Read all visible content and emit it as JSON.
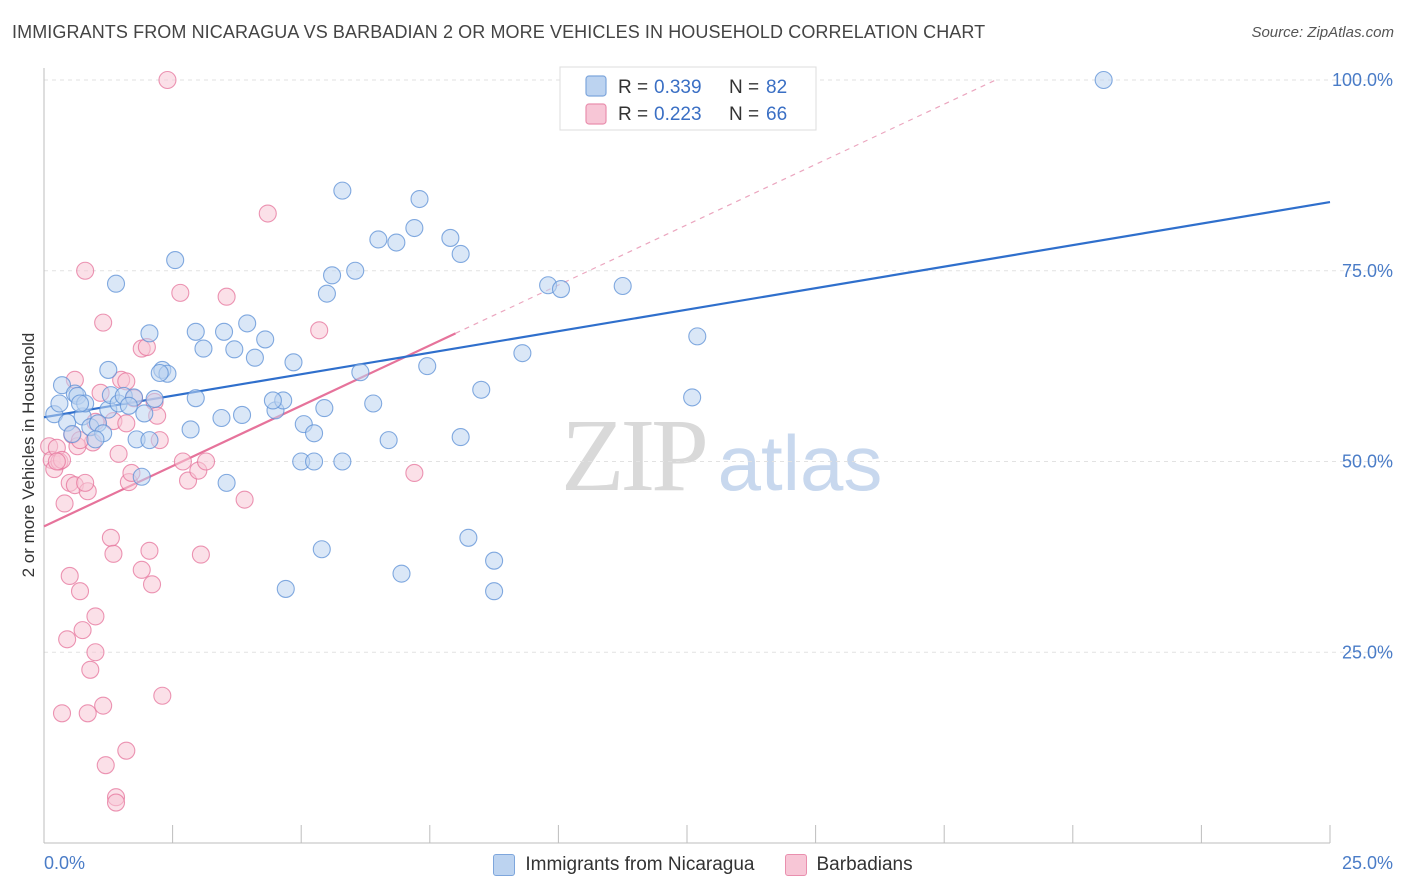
{
  "header": {
    "title": "IMMIGRANTS FROM NICARAGUA VS BARBADIAN 2 OR MORE VEHICLES IN HOUSEHOLD CORRELATION CHART",
    "source": "Source: ZipAtlas.com"
  },
  "watermark": {
    "zip": "ZIP",
    "atlas": "atlas"
  },
  "legend": {
    "r_label": "R =",
    "n_label": "N =",
    "series": [
      {
        "r": "0.339",
        "n": "82"
      },
      {
        "r": "0.223",
        "n": "66"
      }
    ]
  },
  "bottom_legend": {
    "items": [
      {
        "label": "Immigrants from Nicaragua",
        "color": "#8fb4e3"
      },
      {
        "label": "Barbadians",
        "color": "#f2a5bf"
      }
    ]
  },
  "chart_data": {
    "type": "scatter",
    "title": "IMMIGRANTS FROM NICARAGUA VS BARBADIAN 2 OR MORE VEHICLES IN HOUSEHOLD CORRELATION CHART",
    "xlabel": "",
    "ylabel": "2 or more Vehicles in Household",
    "xlim": [
      0,
      25
    ],
    "ylim": [
      0,
      100
    ],
    "x_tick_labels": [
      "0.0%",
      "25.0%"
    ],
    "y_ticks": [
      25,
      50,
      75,
      100
    ],
    "y_tick_labels": [
      "25.0%",
      "50.0%",
      "75.0%",
      "100.0%"
    ],
    "grid": true,
    "legend_position": "top-center",
    "series": [
      {
        "name": "Immigrants from Nicaragua",
        "color": "#5b8fd6",
        "fill": "#bcd3f0",
        "r": 0.339,
        "n": 82,
        "trend": {
          "x0": 0,
          "y0": 55.8,
          "x1": 25,
          "y1": 84.0,
          "solid_to": 25
        },
        "points": [
          [
            0.2,
            56.2
          ],
          [
            0.3,
            57.6
          ],
          [
            0.35,
            60
          ],
          [
            0.45,
            55.1
          ],
          [
            0.6,
            58.9
          ],
          [
            0.65,
            58.6
          ],
          [
            0.75,
            55.9
          ],
          [
            0.8,
            57.6
          ],
          [
            0.9,
            54.5
          ],
          [
            1.05,
            55
          ],
          [
            1.15,
            53.7
          ],
          [
            1.25,
            56.8
          ],
          [
            1.3,
            58.7
          ],
          [
            1.25,
            62
          ],
          [
            1.45,
            57.6
          ],
          [
            1.55,
            58.6
          ],
          [
            1.75,
            58.4
          ],
          [
            1.8,
            52.9
          ],
          [
            1.9,
            48
          ],
          [
            1.95,
            56.3
          ],
          [
            2.05,
            52.8
          ],
          [
            2.3,
            62
          ],
          [
            2.4,
            61.5
          ],
          [
            2.55,
            76.4
          ],
          [
            2.85,
            54.2
          ],
          [
            2.95,
            58.3
          ],
          [
            3.1,
            64.8
          ],
          [
            3.45,
            55.7
          ],
          [
            3.7,
            64.7
          ],
          [
            3.85,
            56.1
          ],
          [
            3.95,
            68.1
          ],
          [
            4.1,
            63.6
          ],
          [
            4.3,
            66
          ],
          [
            4.5,
            56.7
          ],
          [
            4.65,
            58
          ],
          [
            4.85,
            63
          ],
          [
            5.0,
            50
          ],
          [
            5.05,
            54.9
          ],
          [
            5.25,
            53.7
          ],
          [
            5.45,
            57
          ],
          [
            5.5,
            72
          ],
          [
            5.6,
            74.4
          ],
          [
            5.8,
            85.5
          ],
          [
            6.05,
            75
          ],
          [
            6.15,
            61.7
          ],
          [
            6.4,
            57.6
          ],
          [
            6.5,
            79.1
          ],
          [
            6.7,
            52.8
          ],
          [
            6.85,
            78.7
          ],
          [
            7.2,
            80.6
          ],
          [
            7.3,
            84.4
          ],
          [
            7.45,
            62.5
          ],
          [
            7.9,
            79.3
          ],
          [
            8.1,
            77.2
          ],
          [
            8.1,
            53.2
          ],
          [
            8.5,
            59.4
          ],
          [
            9.3,
            64.2
          ],
          [
            9.8,
            73.1
          ],
          [
            10.05,
            72.6
          ],
          [
            11.25,
            73
          ],
          [
            12.6,
            58.4
          ],
          [
            12.7,
            66.4
          ],
          [
            20.6,
            100
          ],
          [
            1.4,
            73.3
          ],
          [
            2.05,
            66.8
          ],
          [
            2.95,
            67
          ],
          [
            3.5,
            67
          ],
          [
            4.45,
            58
          ],
          [
            5.25,
            50
          ],
          [
            6.95,
            35.3
          ],
          [
            4.7,
            33.3
          ],
          [
            5.4,
            38.5
          ],
          [
            8.25,
            40
          ],
          [
            8.75,
            37
          ],
          [
            8.75,
            33
          ],
          [
            3.55,
            47.2
          ],
          [
            5.8,
            50
          ],
          [
            2.15,
            58.2
          ],
          [
            1.65,
            57.3
          ],
          [
            0.55,
            53.6
          ],
          [
            1.0,
            52.9
          ],
          [
            2.25,
            61.6
          ],
          [
            0.7,
            57.6
          ]
        ]
      },
      {
        "name": "Barbadians",
        "color": "#e6739b",
        "fill": "#f7c6d6",
        "r": 0.223,
        "n": 66,
        "trend": {
          "x0": 0,
          "y0": 41.5,
          "x1": 18.5,
          "y1": 100,
          "solid_to": 8.0
        },
        "points": [
          [
            0.1,
            52
          ],
          [
            0.15,
            50.2
          ],
          [
            0.2,
            49
          ],
          [
            0.25,
            51.8
          ],
          [
            0.3,
            50
          ],
          [
            0.35,
            50.2
          ],
          [
            0.35,
            17
          ],
          [
            0.4,
            44.5
          ],
          [
            0.5,
            35
          ],
          [
            0.45,
            26.7
          ],
          [
            0.5,
            47.2
          ],
          [
            0.55,
            53.5
          ],
          [
            0.6,
            46.9
          ],
          [
            0.6,
            60.7
          ],
          [
            0.7,
            33
          ],
          [
            0.75,
            27.9
          ],
          [
            0.8,
            75
          ],
          [
            0.85,
            46.1
          ],
          [
            0.85,
            17
          ],
          [
            0.9,
            22.7
          ],
          [
            0.95,
            52.5
          ],
          [
            1.0,
            29.7
          ],
          [
            1.0,
            25
          ],
          [
            1.1,
            59
          ],
          [
            1.15,
            68.2
          ],
          [
            1.15,
            18
          ],
          [
            1.2,
            10.2
          ],
          [
            1.3,
            40
          ],
          [
            1.35,
            37.9
          ],
          [
            1.35,
            55.3
          ],
          [
            1.4,
            6
          ],
          [
            1.4,
            5.3
          ],
          [
            1.45,
            51
          ],
          [
            1.5,
            60.7
          ],
          [
            1.6,
            60.5
          ],
          [
            1.6,
            12.1
          ],
          [
            1.65,
            47.3
          ],
          [
            1.7,
            48.5
          ],
          [
            1.75,
            58.3
          ],
          [
            1.9,
            64.8
          ],
          [
            1.9,
            35.8
          ],
          [
            2.0,
            65
          ],
          [
            2.05,
            38.3
          ],
          [
            2.1,
            33.9
          ],
          [
            2.15,
            57.8
          ],
          [
            2.25,
            52.8
          ],
          [
            2.3,
            19.3
          ],
          [
            2.4,
            100
          ],
          [
            2.65,
            72.1
          ],
          [
            2.7,
            50
          ],
          [
            2.8,
            47.5
          ],
          [
            3.0,
            48.8
          ],
          [
            3.05,
            37.8
          ],
          [
            3.15,
            50
          ],
          [
            3.55,
            71.6
          ],
          [
            3.9,
            45
          ],
          [
            4.35,
            82.5
          ],
          [
            5.35,
            67.2
          ],
          [
            7.2,
            48.5
          ],
          [
            0.25,
            50
          ],
          [
            0.65,
            52
          ],
          [
            0.7,
            52.8
          ],
          [
            1.0,
            55.2
          ],
          [
            1.6,
            55
          ],
          [
            2.2,
            56
          ],
          [
            0.8,
            47.2
          ]
        ]
      }
    ]
  }
}
